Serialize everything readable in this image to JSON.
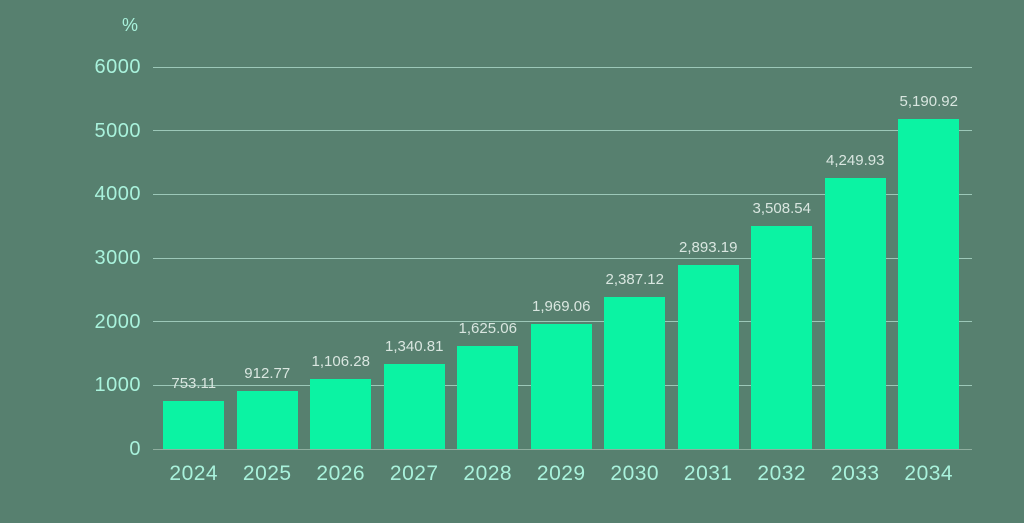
{
  "chart": {
    "unit_label": "%",
    "colors": {
      "background": "#57806F",
      "bar": "#0BF3A3",
      "grid_line": "#A8D5C5",
      "axis_line": "#8FAE9F",
      "tick_label": "#A9F2DC",
      "data_label": "#D9E6E0"
    }
  },
  "chart_data": {
    "type": "bar",
    "title": "",
    "xlabel": "",
    "ylabel": "%",
    "categories": [
      "2024",
      "2025",
      "2026",
      "2027",
      "2028",
      "2029",
      "2030",
      "2031",
      "2032",
      "2033",
      "2034"
    ],
    "values": [
      753.11,
      912.77,
      1106.28,
      1340.81,
      1625.06,
      1969.06,
      2387.12,
      2893.19,
      3508.54,
      4249.93,
      5190.92
    ],
    "data_labels": [
      "753.11",
      "912.77",
      "1,106.28",
      "1,340.81",
      "1,625.06",
      "1,969.06",
      "2,387.12",
      "2,893.19",
      "3,508.54",
      "4,249.93",
      "5,190.92"
    ],
    "ylim": [
      0,
      6000
    ],
    "ytick_step": 1000,
    "yticks": [
      "0",
      "1000",
      "2000",
      "3000",
      "4000",
      "5000",
      "6000"
    ],
    "grid": true,
    "legend": false
  }
}
